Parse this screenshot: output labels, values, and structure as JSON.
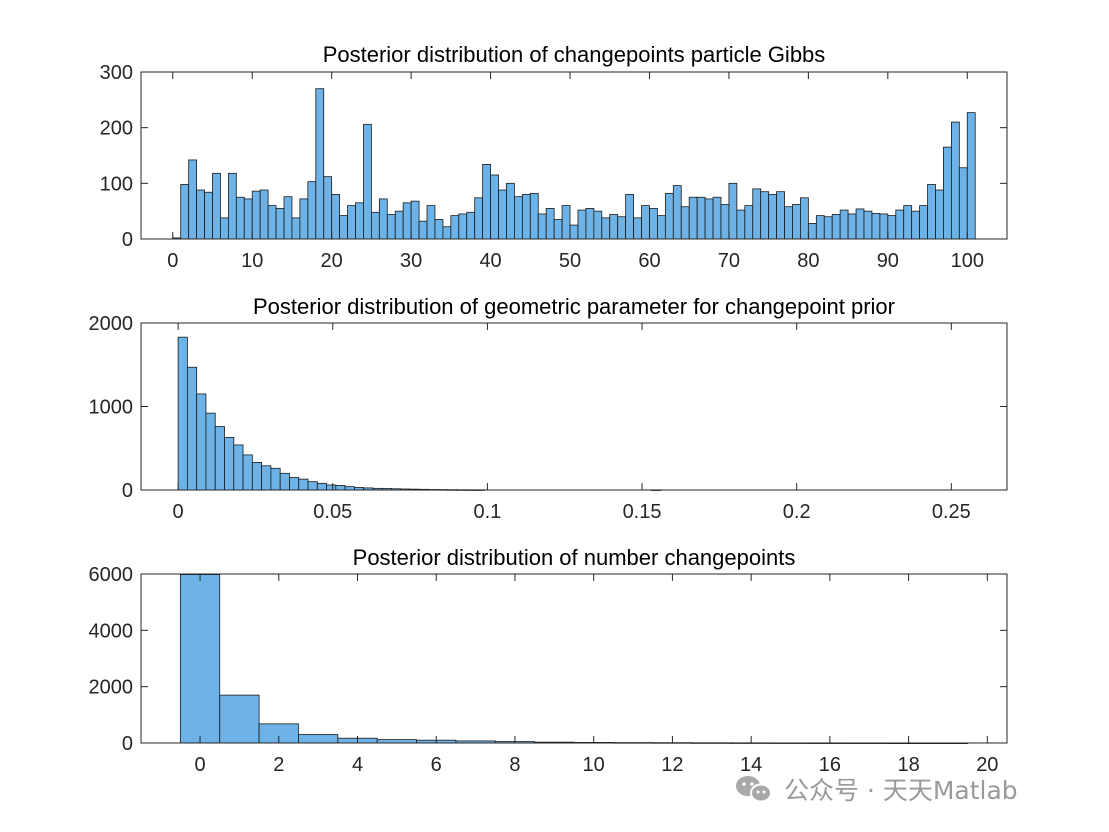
{
  "chart_data": [
    {
      "type": "bar",
      "title": "Posterior distribution of changepoints particle Gibbs",
      "xlabel": "",
      "ylabel": "",
      "xlim": [
        -4,
        105
      ],
      "ylim": [
        0,
        300
      ],
      "xticks": [
        0,
        10,
        20,
        30,
        40,
        50,
        60,
        70,
        80,
        90,
        100
      ],
      "yticks": [
        0,
        100,
        200,
        300
      ],
      "bin_start": 0,
      "bin_width": 1,
      "values": [
        2,
        98,
        142,
        88,
        84,
        118,
        38,
        118,
        75,
        72,
        86,
        88,
        60,
        55,
        76,
        38,
        72,
        103,
        270,
        112,
        80,
        42,
        60,
        65,
        206,
        48,
        72,
        44,
        50,
        65,
        68,
        32,
        60,
        35,
        22,
        42,
        45,
        48,
        74,
        134,
        115,
        88,
        100,
        76,
        80,
        82,
        45,
        55,
        35,
        60,
        25,
        52,
        55,
        50,
        38,
        44,
        40,
        80,
        38,
        60,
        55,
        42,
        82,
        96,
        58,
        75,
        75,
        72,
        75,
        62,
        100,
        52,
        60,
        90,
        85,
        80,
        85,
        58,
        62,
        74,
        28,
        42,
        40,
        44,
        52,
        45,
        54,
        50,
        46,
        45,
        42,
        52,
        60,
        50,
        60,
        98,
        88,
        165,
        210,
        128,
        227
      ],
      "bar_color": "#6db3e8",
      "edge_color": "#1a1a1a"
    },
    {
      "type": "bar",
      "title": "Posterior distribution of geometric parameter for changepoint prior",
      "xlabel": "",
      "ylabel": "",
      "xlim": [
        -0.012,
        0.268
      ],
      "ylim": [
        0,
        2000
      ],
      "xticks": [
        0,
        0.05,
        0.1,
        0.15,
        0.2,
        0.25
      ],
      "xtick_labels": [
        "0",
        "0.05",
        "0.1",
        "0.15",
        "0.2",
        "0.25"
      ],
      "yticks": [
        0,
        1000,
        2000
      ],
      "bin_start": 0,
      "bin_width": 0.003,
      "values": [
        1830,
        1470,
        1150,
        920,
        760,
        630,
        540,
        420,
        330,
        290,
        260,
        200,
        150,
        130,
        100,
        80,
        60,
        55,
        40,
        30,
        25,
        20,
        18,
        15,
        12,
        10,
        8,
        6,
        5,
        4,
        3,
        2,
        2,
        0,
        0,
        0,
        0,
        0,
        0,
        0,
        0,
        0,
        0,
        0,
        0,
        0,
        0,
        0,
        0,
        0,
        0,
        1,
        0,
        0,
        0,
        0,
        0,
        0,
        0,
        0,
        0,
        0,
        0,
        0,
        0,
        0,
        0,
        0,
        0,
        0,
        0,
        0,
        0,
        0,
        0,
        0,
        0,
        0,
        0,
        0,
        0,
        0,
        0,
        0
      ],
      "bar_color": "#6db3e8",
      "edge_color": "#1a1a1a"
    },
    {
      "type": "bar",
      "title": "Posterior distribution of number changepoints",
      "xlabel": "",
      "ylabel": "",
      "xlim": [
        -1.5,
        20.5
      ],
      "ylim": [
        0,
        6000
      ],
      "xticks": [
        0,
        2,
        4,
        6,
        8,
        10,
        12,
        14,
        16,
        18,
        20
      ],
      "yticks": [
        0,
        2000,
        4000,
        6000
      ],
      "bin_start": -0.5,
      "bin_width": 1,
      "values": [
        5980,
        1700,
        680,
        300,
        170,
        120,
        100,
        75,
        50,
        30,
        20,
        15,
        12,
        8,
        6,
        4,
        3,
        2,
        1,
        1
      ],
      "bar_color": "#6db3e8",
      "edge_color": "#1a1a1a"
    }
  ],
  "watermark": {
    "text": "公众号 · 天天Matlab",
    "icon": "wechat-icon"
  }
}
